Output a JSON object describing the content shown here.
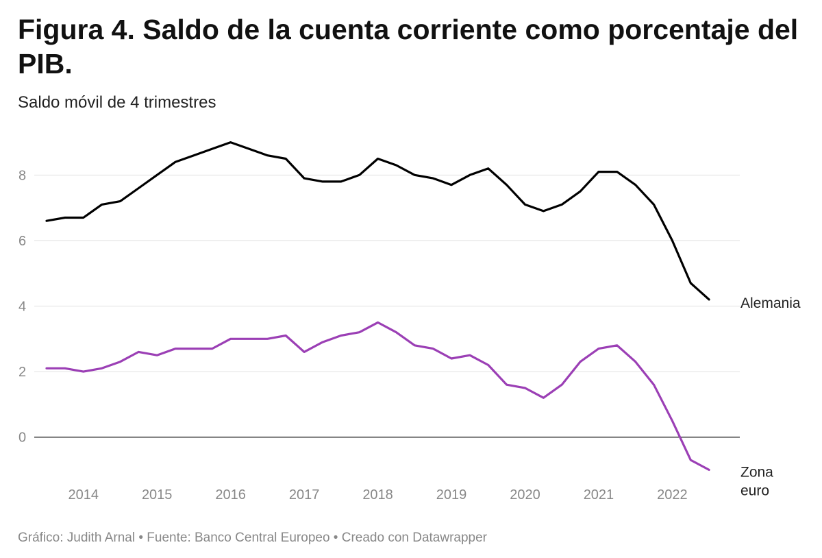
{
  "title": "Figura 4. Saldo de la cuenta corriente como porcentaje del PIB.",
  "subtitle": "Saldo móvil de 4 trimestres",
  "footer": "Gráfico: Judith Arnal • Fuente: Banco Central Europeo • Creado con Datawrapper",
  "chart_data": {
    "type": "line",
    "title": "Figura 4. Saldo de la cuenta corriente como porcentaje del PIB.",
    "subtitle": "Saldo móvil de 4 trimestres",
    "xlabel": "",
    "ylabel": "",
    "x_start": 2013.75,
    "x_step": 0.25,
    "xlim": [
      2013.75,
      2023.0
    ],
    "ylim": [
      -1.2,
      9.2
    ],
    "x_ticks": [
      "2014",
      "2015",
      "2016",
      "2017",
      "2018",
      "2019",
      "2020",
      "2021",
      "2022"
    ],
    "x_tick_values": [
      2014.25,
      2015.25,
      2016.25,
      2017.25,
      2018.25,
      2019.25,
      2020.25,
      2021.25,
      2022.25
    ],
    "y_ticks": [
      0,
      2,
      4,
      6,
      8
    ],
    "y_tick_labels": [
      "0",
      "2",
      "4",
      "6",
      "8"
    ],
    "grid": true,
    "series": [
      {
        "name": "Alemania",
        "color": "#000000",
        "values": [
          6.6,
          6.7,
          6.7,
          7.1,
          7.2,
          7.6,
          8.0,
          8.4,
          8.6,
          8.8,
          9.0,
          8.8,
          8.6,
          8.5,
          7.9,
          7.8,
          7.8,
          8.0,
          8.5,
          8.3,
          8.0,
          7.9,
          7.7,
          8.0,
          8.2,
          7.7,
          7.1,
          6.9,
          7.1,
          7.5,
          8.1,
          8.1,
          7.7,
          7.1,
          6.0,
          4.7,
          4.2
        ]
      },
      {
        "name": "Zona euro",
        "label_lines": [
          "Zona",
          "euro"
        ],
        "color": "#9b3fb5",
        "values": [
          2.1,
          2.1,
          2.0,
          2.1,
          2.3,
          2.6,
          2.5,
          2.7,
          2.7,
          2.7,
          3.0,
          3.0,
          3.0,
          3.1,
          2.6,
          2.9,
          3.1,
          3.2,
          3.5,
          3.2,
          2.8,
          2.7,
          2.4,
          2.5,
          2.2,
          1.6,
          1.5,
          1.2,
          1.6,
          2.3,
          2.7,
          2.8,
          2.3,
          1.6,
          0.5,
          -0.7,
          -1.0
        ]
      }
    ]
  }
}
